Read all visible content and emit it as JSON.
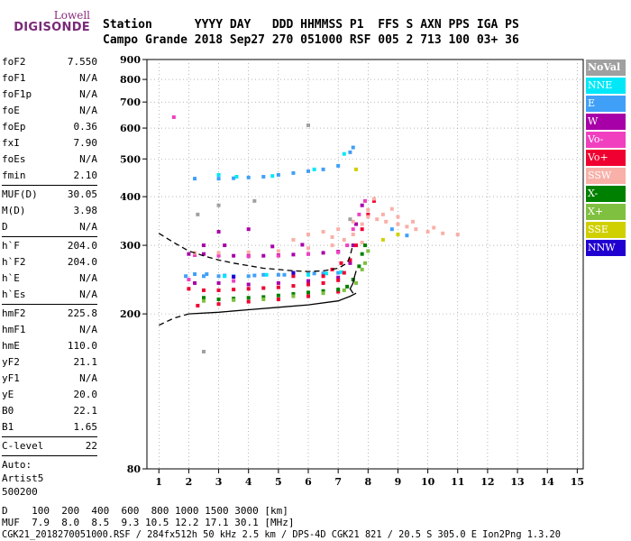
{
  "logo": {
    "line1": "Lowell",
    "line2": "DIGISONDE"
  },
  "header": {
    "row1": "Station      YYYY DAY   DDD HHMMSS P1  FFS S AXN PPS IGA PS",
    "row2": "Campo Grande 2018 Sep27 270 051000 RSF 005 2 713 100 03+ 36"
  },
  "params_group1": [
    {
      "name": "foF2",
      "value": "7.550"
    },
    {
      "name": "foF1",
      "value": "N/A"
    },
    {
      "name": "foF1p",
      "value": "N/A"
    },
    {
      "name": "foE",
      "value": "N/A"
    },
    {
      "name": "foEp",
      "value": "0.36"
    },
    {
      "name": "fxI",
      "value": "7.90"
    },
    {
      "name": "foEs",
      "value": "N/A"
    },
    {
      "name": "fmin",
      "value": "2.10"
    }
  ],
  "params_group2": [
    {
      "name": "MUF(D)",
      "value": "30.05"
    },
    {
      "name": "M(D)",
      "value": "3.98"
    },
    {
      "name": "D",
      "value": "N/A"
    }
  ],
  "params_group3": [
    {
      "name": "h`F",
      "value": "204.0"
    },
    {
      "name": "h`F2",
      "value": "204.0"
    },
    {
      "name": "h`E",
      "value": "N/A"
    },
    {
      "name": "h`Es",
      "value": "N/A"
    }
  ],
  "params_group4": [
    {
      "name": "hmF2",
      "value": "225.8"
    },
    {
      "name": "hmF1",
      "value": "N/A"
    },
    {
      "name": "hmE",
      "value": "110.0"
    },
    {
      "name": "yF2",
      "value": "21.1"
    },
    {
      "name": "yF1",
      "value": "N/A"
    },
    {
      "name": "yE",
      "value": "20.0"
    },
    {
      "name": "B0",
      "value": "22.1"
    },
    {
      "name": "B1",
      "value": "1.65"
    }
  ],
  "params_group5": [
    {
      "name": "C-level",
      "value": "22"
    }
  ],
  "auto": {
    "line1": "Auto:",
    "line2": "Artist5",
    "line3": "500200"
  },
  "footer": {
    "d_line": "D    100  200  400  600  800 1000 1500 3000 [km]",
    "muf_line": "MUF  7.9  8.0  8.5  9.3 10.5 12.2 17.1 30.1 [MHz]",
    "file_line": "CGK21_2018270051000.RSF / 284fx512h 50 kHz 2.5 km / DPS-4D CGK21 821 / 20.5 S 305.0 E Ion2Png 1.3.20"
  },
  "legend": [
    {
      "label": "NoVal",
      "color": "#a0a0a0"
    },
    {
      "label": "NNE",
      "color": "#00e8f8"
    },
    {
      "label": "E",
      "color": "#40a0f8"
    },
    {
      "label": "W",
      "color": "#a800a8"
    },
    {
      "label": "Vo-",
      "color": "#f040c0"
    },
    {
      "label": "Vo+",
      "color": "#f00030"
    },
    {
      "label": "SSW",
      "color": "#f8b0a8"
    },
    {
      "label": "X-",
      "color": "#008000"
    },
    {
      "label": "X+",
      "color": "#80c040"
    },
    {
      "label": "SSE",
      "color": "#d0d000"
    },
    {
      "label": "NNW",
      "color": "#2000d0"
    }
  ],
  "chart_data": {
    "type": "scatter",
    "title": "",
    "xlabel": "",
    "ylabel": "",
    "xlim": [
      0.6,
      15.2
    ],
    "ylim": [
      80,
      900
    ],
    "x_ticks": [
      1,
      2,
      3,
      4,
      5,
      6,
      7,
      8,
      9,
      10,
      11,
      12,
      13,
      14,
      15
    ],
    "y_ticks": [
      80,
      200,
      300,
      400,
      500,
      600,
      700,
      800,
      900
    ],
    "y_scale": "log",
    "grid": "dotted",
    "legend_position": "right",
    "series": [
      {
        "name": "E",
        "color": "#40a0f8",
        "points": [
          [
            1.9,
            250
          ],
          [
            2.5,
            250
          ],
          [
            3.0,
            250
          ],
          [
            3.5,
            250
          ],
          [
            4.0,
            250
          ],
          [
            4.5,
            252
          ],
          [
            5.0,
            252
          ],
          [
            5.5,
            253
          ],
          [
            6.0,
            253
          ],
          [
            6.5,
            254
          ],
          [
            7.0,
            255
          ],
          [
            2.2,
            445
          ],
          [
            3.0,
            445
          ],
          [
            3.5,
            446
          ],
          [
            4.0,
            448
          ],
          [
            4.5,
            450
          ],
          [
            5.0,
            455
          ],
          [
            5.5,
            460
          ],
          [
            6.0,
            465
          ],
          [
            6.5,
            470
          ],
          [
            7.0,
            480
          ],
          [
            7.4,
            520
          ],
          [
            7.5,
            535
          ],
          [
            8.8,
            330
          ],
          [
            9.3,
            318
          ],
          [
            2.2,
            253
          ],
          [
            2.6,
            253
          ],
          [
            3.2,
            251
          ],
          [
            4.2,
            251
          ],
          [
            5.2,
            252
          ],
          [
            6.2,
            254
          ]
        ]
      },
      {
        "name": "NNE",
        "color": "#00e8f8",
        "points": [
          [
            3.2,
            250
          ],
          [
            4.6,
            252
          ],
          [
            6.0,
            252
          ],
          [
            6.6,
            254
          ],
          [
            7.1,
            256
          ],
          [
            3.0,
            455
          ],
          [
            3.6,
            450
          ],
          [
            4.8,
            452
          ],
          [
            6.2,
            470
          ],
          [
            7.2,
            515
          ]
        ]
      },
      {
        "name": "W",
        "color": "#a800a8",
        "points": [
          [
            2.0,
            285
          ],
          [
            2.5,
            285
          ],
          [
            3.0,
            283
          ],
          [
            3.5,
            282
          ],
          [
            4.0,
            282
          ],
          [
            4.5,
            282
          ],
          [
            5.0,
            283
          ],
          [
            5.5,
            284
          ],
          [
            6.0,
            285
          ],
          [
            6.5,
            287
          ],
          [
            7.0,
            289
          ],
          [
            2.2,
            240
          ],
          [
            3.0,
            240
          ],
          [
            4.0,
            238
          ],
          [
            5.0,
            240
          ],
          [
            6.0,
            243
          ],
          [
            7.0,
            248
          ],
          [
            7.4,
            270
          ],
          [
            7.5,
            300
          ],
          [
            7.6,
            340
          ],
          [
            7.8,
            380
          ],
          [
            3.0,
            325
          ],
          [
            4.0,
            330
          ],
          [
            2.5,
            300
          ],
          [
            3.2,
            300
          ],
          [
            4.8,
            298
          ],
          [
            5.8,
            301
          ]
        ]
      },
      {
        "name": "Vo-",
        "color": "#f040c0",
        "points": [
          [
            2.2,
            283
          ],
          [
            3.0,
            282
          ],
          [
            4.0,
            281
          ],
          [
            5.0,
            282
          ],
          [
            6.0,
            285
          ],
          [
            7.0,
            288
          ],
          [
            7.3,
            300
          ],
          [
            7.5,
            330
          ],
          [
            7.7,
            360
          ],
          [
            7.9,
            390
          ],
          [
            1.5,
            640
          ],
          [
            2.0,
            245
          ],
          [
            3.5,
            243
          ]
        ]
      },
      {
        "name": "Vo+",
        "color": "#f00030",
        "points": [
          [
            2.0,
            232
          ],
          [
            2.5,
            230
          ],
          [
            3.0,
            230
          ],
          [
            3.5,
            231
          ],
          [
            4.0,
            232
          ],
          [
            4.5,
            233
          ],
          [
            5.0,
            234
          ],
          [
            5.5,
            236
          ],
          [
            6.0,
            238
          ],
          [
            6.5,
            240
          ],
          [
            7.0,
            244
          ],
          [
            7.2,
            255
          ],
          [
            7.4,
            275
          ],
          [
            7.6,
            300
          ],
          [
            7.8,
            330
          ],
          [
            8.0,
            360
          ],
          [
            8.2,
            390
          ],
          [
            2.3,
            210
          ],
          [
            3.0,
            212
          ],
          [
            4.0,
            215
          ],
          [
            5.0,
            218
          ],
          [
            6.0,
            222
          ],
          [
            7.0,
            228
          ],
          [
            6.8,
            260
          ],
          [
            7.1,
            270
          ],
          [
            6.5,
            250
          ],
          [
            5.5,
            250
          ]
        ]
      },
      {
        "name": "SSW",
        "color": "#f8b0a8",
        "points": [
          [
            2.2,
            287
          ],
          [
            3.0,
            287
          ],
          [
            4.0,
            288
          ],
          [
            5.0,
            290
          ],
          [
            6.0,
            295
          ],
          [
            6.8,
            300
          ],
          [
            7.2,
            310
          ],
          [
            7.5,
            320
          ],
          [
            7.8,
            340
          ],
          [
            8.0,
            355
          ],
          [
            8.3,
            350
          ],
          [
            8.6,
            345
          ],
          [
            9.0,
            340
          ],
          [
            9.3,
            335
          ],
          [
            9.6,
            330
          ],
          [
            10.0,
            325
          ],
          [
            10.5,
            322
          ],
          [
            11.0,
            320
          ],
          [
            7.0,
            330
          ],
          [
            7.5,
            345
          ],
          [
            8.0,
            370
          ],
          [
            8.5,
            360
          ],
          [
            9.0,
            355
          ],
          [
            6.5,
            325
          ],
          [
            6.0,
            320
          ],
          [
            5.5,
            310
          ],
          [
            8.2,
            395
          ],
          [
            9.5,
            345
          ],
          [
            10.2,
            333
          ],
          [
            8.8,
            372
          ],
          [
            7.8,
            305
          ],
          [
            6.8,
            315
          ]
        ]
      },
      {
        "name": "X-",
        "color": "#008000",
        "points": [
          [
            2.5,
            220
          ],
          [
            3.0,
            218
          ],
          [
            3.5,
            219
          ],
          [
            4.0,
            220
          ],
          [
            4.5,
            221
          ],
          [
            5.0,
            223
          ],
          [
            5.5,
            225
          ],
          [
            6.0,
            227
          ],
          [
            6.5,
            229
          ],
          [
            7.0,
            231
          ],
          [
            7.3,
            235
          ],
          [
            7.5,
            245
          ],
          [
            7.7,
            265
          ],
          [
            7.8,
            285
          ],
          [
            7.9,
            300
          ]
        ]
      },
      {
        "name": "X+",
        "color": "#80c040",
        "points": [
          [
            2.5,
            216
          ],
          [
            3.5,
            217
          ],
          [
            4.5,
            218
          ],
          [
            5.5,
            222
          ],
          [
            6.5,
            226
          ],
          [
            7.2,
            230
          ],
          [
            7.6,
            240
          ],
          [
            7.8,
            260
          ],
          [
            8.0,
            290
          ],
          [
            7.9,
            270
          ]
        ]
      },
      {
        "name": "SSE",
        "color": "#d0d000",
        "points": [
          [
            7.6,
            470
          ],
          [
            9.0,
            320
          ],
          [
            8.5,
            310
          ]
        ]
      },
      {
        "name": "NNW",
        "color": "#2000d0",
        "points": [
          [
            5.5,
            255
          ],
          [
            3.5,
            249
          ]
        ]
      },
      {
        "name": "NoVal",
        "color": "#a0a0a0",
        "points": [
          [
            2.3,
            360
          ],
          [
            3.0,
            380
          ],
          [
            4.2,
            390
          ],
          [
            6.0,
            610
          ],
          [
            2.5,
            160
          ],
          [
            7.4,
            350
          ]
        ]
      }
    ],
    "profile_lines": [
      {
        "style": "dashed",
        "points": [
          [
            1.0,
            322
          ],
          [
            1.5,
            305
          ],
          [
            2.0,
            290
          ],
          [
            2.5,
            282
          ],
          [
            3.0,
            275
          ],
          [
            3.5,
            270
          ],
          [
            4.0,
            266
          ],
          [
            4.5,
            262
          ],
          [
            5.0,
            260
          ],
          [
            5.5,
            258
          ],
          [
            6.0,
            257
          ],
          [
            6.5,
            258
          ],
          [
            7.0,
            262
          ],
          [
            7.3,
            270
          ],
          [
            7.4,
            282
          ],
          [
            7.5,
            302
          ]
        ]
      },
      {
        "style": "dashed",
        "points": [
          [
            1.0,
            187
          ],
          [
            1.5,
            195
          ],
          [
            2.0,
            200
          ]
        ]
      },
      {
        "style": "solid",
        "points": [
          [
            2.0,
            200
          ],
          [
            3.0,
            202
          ],
          [
            4.0,
            205
          ],
          [
            5.0,
            208
          ],
          [
            6.0,
            211
          ],
          [
            7.0,
            216
          ],
          [
            7.4,
            222
          ],
          [
            7.6,
            226
          ]
        ]
      },
      {
        "style": "solid",
        "points": [
          [
            7.5,
            226
          ],
          [
            7.4,
            232
          ],
          [
            7.5,
            240
          ],
          [
            7.55,
            250
          ],
          [
            7.6,
            258
          ]
        ]
      }
    ]
  }
}
